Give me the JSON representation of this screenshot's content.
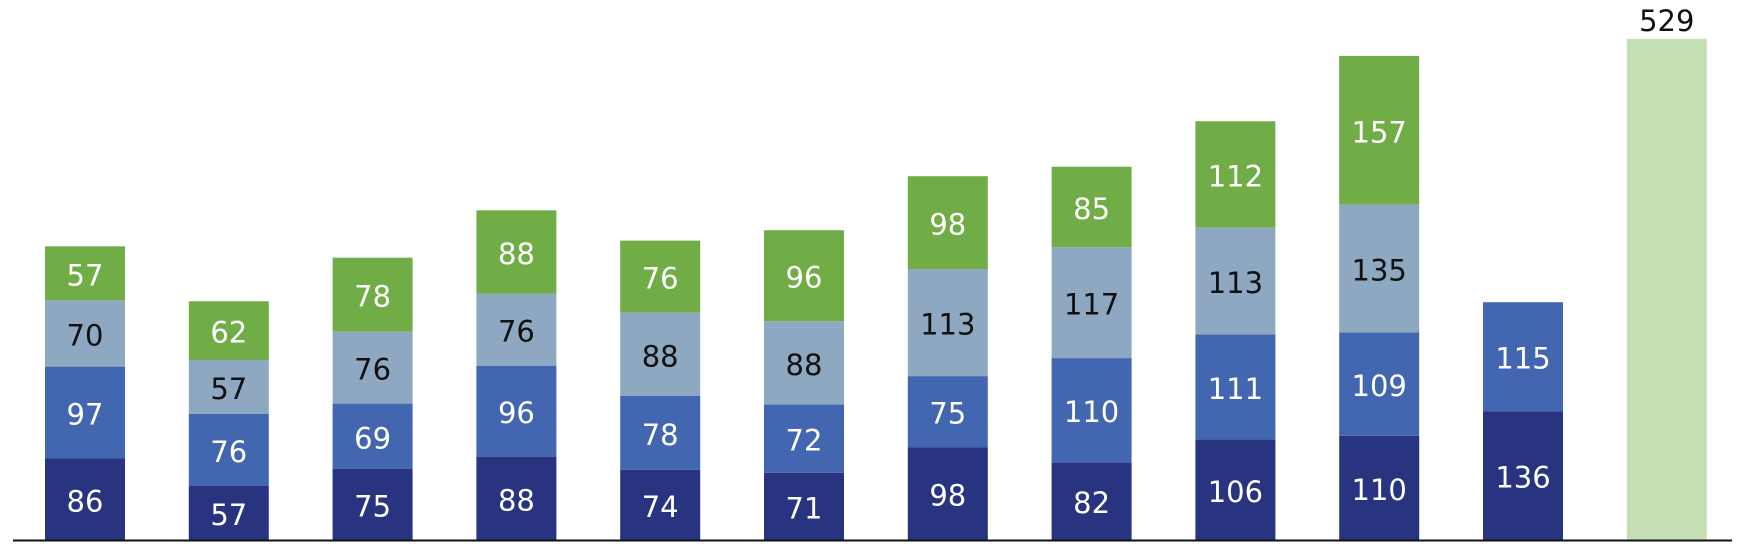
{
  "chart_data": {
    "type": "stacked_bar",
    "categories": [
      null,
      null,
      null,
      null,
      null,
      null,
      null,
      null,
      null,
      null,
      null,
      null
    ],
    "series": [
      {
        "color": "#283480",
        "values": [
          86,
          57,
          75,
          88,
          74,
          71,
          98,
          82,
          106,
          110,
          136,
          null
        ]
      },
      {
        "color": "#4266b0",
        "values": [
          97,
          76,
          69,
          96,
          78,
          72,
          75,
          110,
          111,
          109,
          115,
          null
        ]
      },
      {
        "color": "#8fa8c2",
        "values": [
          70,
          57,
          76,
          76,
          88,
          88,
          113,
          117,
          113,
          135,
          null,
          null
        ]
      },
      {
        "color": "#70ad47",
        "values": [
          57,
          62,
          78,
          88,
          76,
          96,
          98,
          85,
          112,
          157,
          null,
          null
        ]
      },
      {
        "color": "#c5e0b4",
        "values": [
          null,
          null,
          null,
          null,
          null,
          null,
          null,
          null,
          null,
          null,
          null,
          529
        ]
      }
    ],
    "ylim": [
      0,
      570
    ]
  }
}
